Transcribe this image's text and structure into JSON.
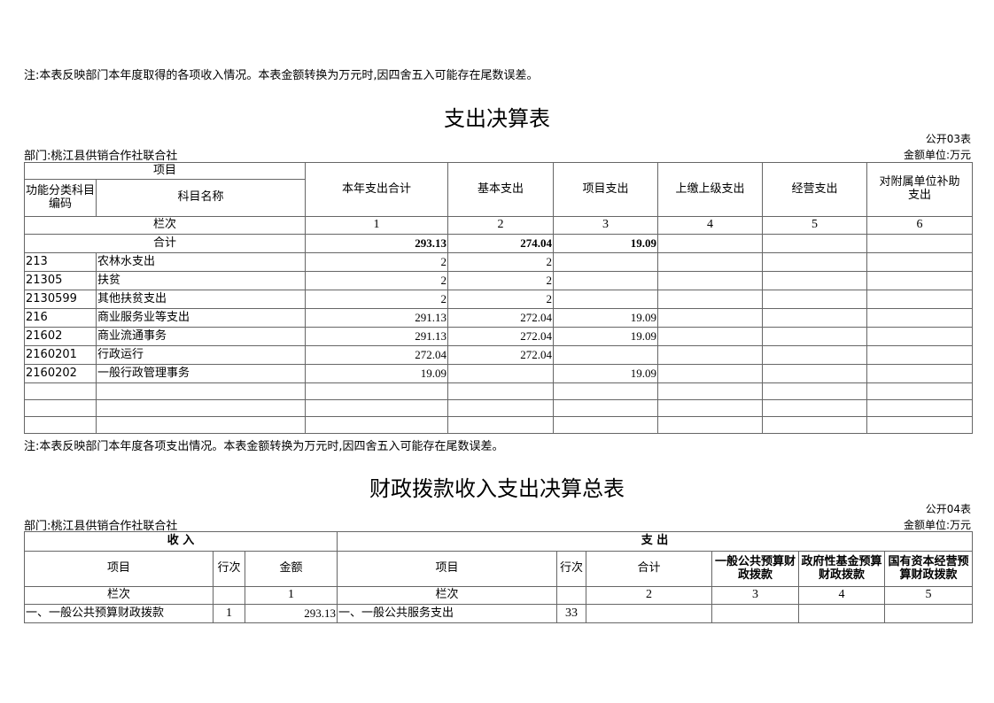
{
  "top_note": "注:本表反映部门本年度取得的各项收入情况。本表金额转换为万元时,因四舍五入可能存在尾数误差。",
  "t1": {
    "title": "支出决算表",
    "code": "公开03表",
    "unit": "金额单位:万元",
    "dept": "部门:桃江县供销合作社联合社",
    "h_item": "项目",
    "h_code": "功能分类科目编码",
    "h_name": "科目名称",
    "cols": [
      "本年支出合计",
      "基本支出",
      "项目支出",
      "上缴上级支出",
      "经营支出",
      "对附属单位补助支出"
    ],
    "lanci": "栏次",
    "col_nums": [
      "1",
      "2",
      "3",
      "4",
      "5",
      "6"
    ],
    "total_label": "合计",
    "total": [
      "293.13",
      "274.04",
      "19.09",
      "",
      "",
      ""
    ],
    "rows": [
      {
        "code": "213",
        "name": "农林水支出",
        "v": [
          "2",
          "2",
          "",
          "",
          "",
          ""
        ]
      },
      {
        "code": "21305",
        "name": "扶贫",
        "v": [
          "2",
          "2",
          "",
          "",
          "",
          ""
        ]
      },
      {
        "code": "2130599",
        "name": "其他扶贫支出",
        "v": [
          "2",
          "2",
          "",
          "",
          "",
          ""
        ]
      },
      {
        "code": "216",
        "name": "商业服务业等支出",
        "v": [
          "291.13",
          "272.04",
          "19.09",
          "",
          "",
          ""
        ]
      },
      {
        "code": "21602",
        "name": "商业流通事务",
        "v": [
          "291.13",
          "272.04",
          "19.09",
          "",
          "",
          ""
        ]
      },
      {
        "code": "2160201",
        "name": "行政运行",
        "v": [
          "272.04",
          "272.04",
          "",
          "",
          "",
          ""
        ]
      },
      {
        "code": "2160202",
        "name": "一般行政管理事务",
        "v": [
          "19.09",
          "",
          "19.09",
          "",
          "",
          ""
        ]
      }
    ],
    "note": "注:本表反映部门本年度各项支出情况。本表金额转换为万元时,因四舍五入可能存在尾数误差。"
  },
  "t2": {
    "title": "财政拨款收入支出决算总表",
    "code": "公开04表",
    "unit": "金额单位:万元",
    "dept": "部门:桃江县供销合作社联合社",
    "income": "收 入",
    "expense": "支 出",
    "h": [
      "项目",
      "行次",
      "金额",
      "项目",
      "行次",
      "合计",
      "一般公共预算财政拨款",
      "政府性基金预算财政拨款",
      "国有资本经营预算财政拨款"
    ],
    "lanci": [
      "栏次",
      "",
      "1",
      "栏次",
      "",
      "2",
      "3",
      "4",
      "5"
    ],
    "row1": [
      "一、一般公共预算财政拨款",
      "1",
      "293.13",
      "一、一般公共服务支出",
      "33",
      "",
      "",
      "",
      ""
    ]
  }
}
